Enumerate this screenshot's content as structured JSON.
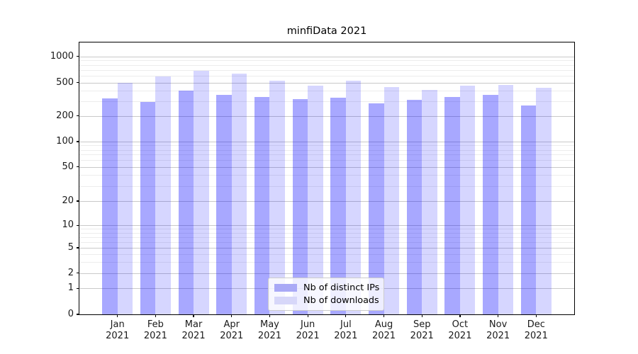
{
  "title": "minfiData 2021",
  "chart_data": {
    "type": "bar",
    "title": "minfiData 2021",
    "categories": [
      "Jan 2021",
      "Feb 2021",
      "Mar 2021",
      "Apr 2021",
      "May 2021",
      "Jun 2021",
      "Jul 2021",
      "Aug 2021",
      "Sep 2021",
      "Oct 2021",
      "Nov 2021",
      "Dec 2021"
    ],
    "series": [
      {
        "name": "Nb of distinct IPs",
        "color": "#0000ff",
        "alpha": 0.34,
        "rendered_color": "#a9a9f6",
        "values": [
          325,
          295,
          400,
          360,
          335,
          320,
          330,
          280,
          310,
          340,
          355,
          265
        ]
      },
      {
        "name": "Nb of downloads",
        "color": "#0000ff",
        "alpha": 0.16,
        "rendered_color": "#d7d7f9",
        "values": [
          500,
          585,
          680,
          640,
          530,
          460,
          530,
          440,
          410,
          460,
          470,
          435
        ]
      }
    ],
    "xlabel": "",
    "ylabel": "",
    "yscale": "symlog",
    "y_ticks": [
      0,
      1,
      2,
      5,
      10,
      20,
      50,
      100,
      200,
      500,
      1000
    ],
    "y_minor_ticks": [
      3,
      4,
      6,
      7,
      8,
      9,
      30,
      40,
      60,
      70,
      80,
      90,
      300,
      400,
      600,
      700,
      800,
      900
    ],
    "ylim": [
      0,
      1460
    ],
    "grid": true,
    "grid_major_color": "#c9c9c9",
    "grid_minor_color": "#ececec",
    "legend_position": "lower center inside"
  },
  "legend": {
    "items": [
      {
        "label": "Nb of distinct IPs"
      },
      {
        "label": "Nb of downloads"
      }
    ]
  }
}
